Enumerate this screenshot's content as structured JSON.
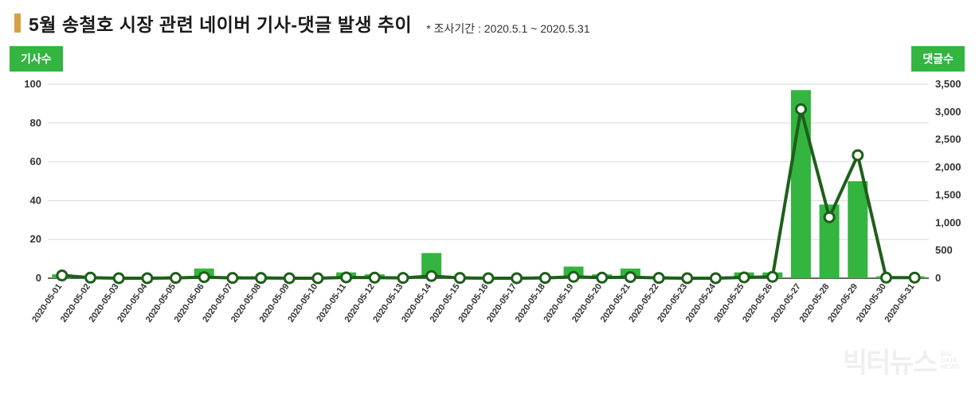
{
  "header": {
    "title": "5월 송철호 시장 관련 네이버 기사-댓글 발생 추이",
    "period_label": "* 조사기간 : 2020.5.1 ~ 2020.5.31",
    "bullet_color": "#d6a344"
  },
  "axis_tags": {
    "left": "기사수",
    "right": "댓글수",
    "bg_color": "#33b540"
  },
  "watermark": {
    "main": "빅터뉴스",
    "sub1": "BIG",
    "sub2": "DATA",
    "sub3": "NEWS"
  },
  "chart": {
    "type": "combo-bar-line",
    "categories": [
      "2020-05-01",
      "2020-05-02",
      "2020-05-03",
      "2020-05-04",
      "2020-05-05",
      "2020-05-06",
      "2020-05-07",
      "2020-05-08",
      "2020-05-09",
      "2020-05-10",
      "2020-05-11",
      "2020-05-12",
      "2020-05-13",
      "2020-05-14",
      "2020-05-15",
      "2020-05-16",
      "2020-05-17",
      "2020-05-18",
      "2020-05-19",
      "2020-05-20",
      "2020-05-21",
      "2020-05-22",
      "2020-05-23",
      "2020-05-24",
      "2020-05-25",
      "2020-05-26",
      "2020-05-27",
      "2020-05-28",
      "2020-05-29",
      "2020-05-30",
      "2020-05-31"
    ],
    "bars": {
      "name": "기사수",
      "color": "#33b540",
      "y_axis": "left",
      "values": [
        2,
        1,
        0,
        0,
        1,
        5,
        1,
        1,
        0,
        0,
        3,
        2,
        1,
        13,
        1,
        0,
        0,
        1,
        6,
        2,
        5,
        1,
        0,
        0,
        3,
        3,
        97,
        38,
        50,
        1,
        1
      ]
    },
    "line": {
      "name": "댓글수",
      "stroke": "#1e5f1a",
      "stroke_width": 4,
      "marker_fill": "#ffffff",
      "marker_stroke": "#1e5f1a",
      "marker_stroke_width": 3,
      "marker_radius": 6,
      "y_axis": "right",
      "values": [
        50,
        10,
        0,
        0,
        5,
        20,
        5,
        5,
        0,
        0,
        15,
        10,
        5,
        40,
        5,
        0,
        0,
        5,
        25,
        10,
        20,
        5,
        0,
        0,
        15,
        25,
        3050,
        1100,
        2220,
        10,
        10
      ]
    },
    "y_left": {
      "min": 0,
      "max": 100,
      "step": 20,
      "label_fontsize": 13,
      "label_color": "#333333"
    },
    "y_right": {
      "min": 0,
      "max": 3500,
      "step": 500,
      "label_fontsize": 13,
      "label_color": "#333333"
    },
    "x_label_fontsize": 11,
    "x_label_color": "#333333",
    "x_label_rotation": -55,
    "grid_color": "#d9d9d9",
    "baseline_color": "#333333",
    "background_color": "#ffffff",
    "bar_width_ratio": 0.7
  }
}
